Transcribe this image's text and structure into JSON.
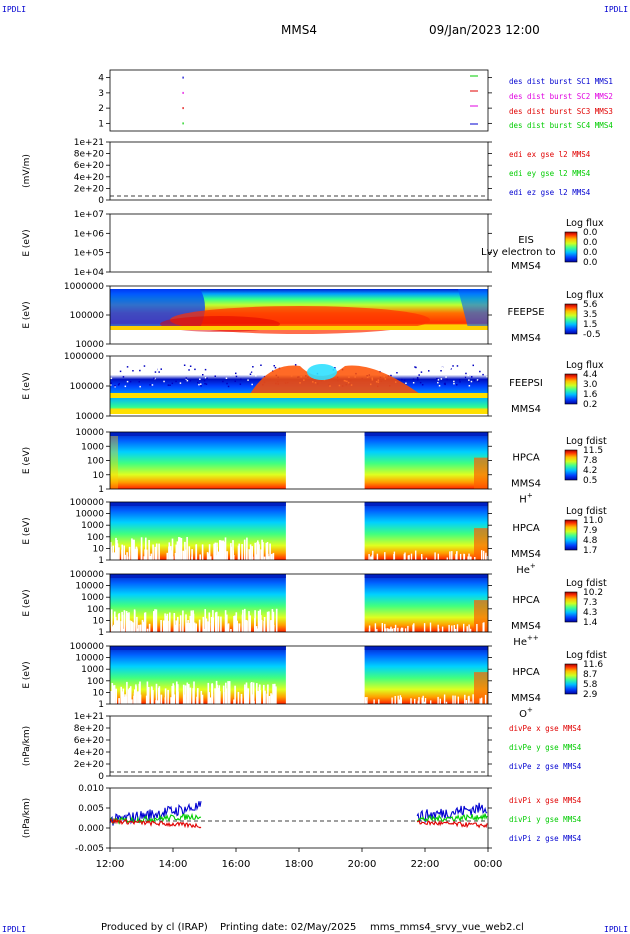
{
  "corner_tag": "IPDLI",
  "header": {
    "spacecraft": "MMS4",
    "date_time": "09/Jan/2023 12:00"
  },
  "footer": {
    "produced_by": "Produced by cl (IRAP)",
    "printing_date": "Printing date: 02/May/2025",
    "script_name": "mms_mms4_srvy_vue_web2.cl"
  },
  "colors": {
    "red": "#e00000",
    "green": "#00cc00",
    "magenta": "#e000e0",
    "blue": "#0000d0",
    "dark_blue": "#0000a0"
  },
  "chart_data": [
    {
      "id": "burst",
      "type": "scatter",
      "y_ticks": [
        "4",
        "3",
        "2",
        "1"
      ],
      "x_range": [
        "12:00",
        "00:00"
      ],
      "ylim": [
        0.5,
        4.5
      ],
      "series": [
        {
          "name": "des dist burst SC1 MMS1",
          "color": "#0000d0",
          "points": [
            [
              14.3,
              4
            ]
          ]
        },
        {
          "name": "des dist burst SC2 MMS2",
          "color": "#e000e0",
          "points": [
            [
              14.3,
              3
            ]
          ]
        },
        {
          "name": "des dist burst SC3 MMS3",
          "color": "#e00000",
          "points": [
            [
              14.3,
              2
            ]
          ]
        },
        {
          "name": "des dist burst SC4 MMS4",
          "color": "#00cc00",
          "points": [
            [
              14.3,
              1
            ]
          ]
        }
      ]
    },
    {
      "id": "edi",
      "type": "line",
      "ylabel": "(mV/m)",
      "y_ticks": [
        "1e+21",
        "8e+20",
        "6e+20",
        "4e+20",
        "2e+20",
        "0"
      ],
      "series": [
        {
          "name": "edi ex gse l2 MMS4",
          "color": "#e00000"
        },
        {
          "name": "edi ey gse l2 MMS4",
          "color": "#00cc00"
        },
        {
          "name": "edi ez gse l2 MMS4",
          "color": "#0000d0"
        }
      ]
    },
    {
      "id": "eis",
      "type": "heatmap",
      "ylabel": "E (eV)",
      "y_ticks": [
        "1e+07",
        "1e+06",
        "1e+05",
        "1e+04"
      ],
      "labels": [
        "EIS",
        "MMS4"
      ],
      "overlay_text": "Lvy electron to",
      "colorbar": {
        "title": "Log flux",
        "ticks": [
          "0.0",
          "0.0",
          "0.0",
          "0.0"
        ]
      }
    },
    {
      "id": "feepse",
      "type": "heatmap",
      "ylabel": "E (eV)",
      "y_ticks": [
        "1000000",
        "100000",
        "10000"
      ],
      "labels": [
        "FEEPSE",
        "MMS4"
      ],
      "colorbar": {
        "title": "Log flux",
        "ticks": [
          "5.6",
          "3.5",
          "1.5",
          "-0.5"
        ]
      }
    },
    {
      "id": "feepsi",
      "type": "heatmap",
      "ylabel": "E (eV)",
      "y_ticks": [
        "1000000",
        "100000",
        "10000"
      ],
      "labels": [
        "FEEPSI",
        "MMS4"
      ],
      "colorbar": {
        "title": "Log flux",
        "ticks": [
          "4.4",
          "3.0",
          "1.6",
          "0.2"
        ]
      }
    },
    {
      "id": "hpca_h",
      "type": "heatmap",
      "ylabel": "E (eV)",
      "y_ticks": [
        "10000",
        "1000",
        "100",
        "10",
        "1"
      ],
      "labels": [
        "HPCA",
        "MMS4"
      ],
      "species": "H",
      "species_charge": "+",
      "gap": [
        "17:35",
        "20:05"
      ],
      "colorbar": {
        "title": "Log fdist",
        "ticks": [
          "11.5",
          "7.8",
          "4.2",
          "0.5"
        ]
      }
    },
    {
      "id": "hpca_he",
      "type": "heatmap",
      "ylabel": "E (eV)",
      "y_ticks": [
        "100000",
        "10000",
        "1000",
        "100",
        "10",
        "1"
      ],
      "labels": [
        "HPCA",
        "MMS4"
      ],
      "species": "He",
      "species_charge": "+",
      "gap": [
        "17:35",
        "20:05"
      ],
      "colorbar": {
        "title": "Log fdist",
        "ticks": [
          "11.0",
          "7.9",
          "4.8",
          "1.7"
        ]
      }
    },
    {
      "id": "hpca_hepp",
      "type": "heatmap",
      "ylabel": "E (eV)",
      "y_ticks": [
        "100000",
        "10000",
        "1000",
        "100",
        "10",
        "1"
      ],
      "labels": [
        "HPCA",
        "MMS4"
      ],
      "species": "He",
      "species_charge": "++",
      "gap": [
        "17:35",
        "20:05"
      ],
      "colorbar": {
        "title": "Log fdist",
        "ticks": [
          "10.2",
          "7.3",
          "4.3",
          "1.4"
        ]
      }
    },
    {
      "id": "hpca_o",
      "type": "heatmap",
      "ylabel": "E (eV)",
      "y_ticks": [
        "100000",
        "10000",
        "1000",
        "100",
        "10",
        "1"
      ],
      "labels": [
        "HPCA",
        "MMS4"
      ],
      "species": "O",
      "species_charge": "+",
      "gap": [
        "17:35",
        "20:05"
      ],
      "colorbar": {
        "title": "Log fdist",
        "ticks": [
          "11.6",
          "8.7",
          "5.8",
          "2.9"
        ]
      }
    },
    {
      "id": "divpe",
      "type": "line",
      "ylabel": "(nPa/km)",
      "y_ticks": [
        "1e+21",
        "8e+20",
        "6e+20",
        "4e+20",
        "2e+20",
        "0"
      ],
      "series": [
        {
          "name": "divPe x gse MMS4",
          "color": "#e00000"
        },
        {
          "name": "divPe y gse MMS4",
          "color": "#00cc00"
        },
        {
          "name": "divPe z gse MMS4",
          "color": "#0000d0"
        }
      ]
    },
    {
      "id": "divpi",
      "type": "line",
      "ylabel": "(nPa/km)",
      "y_ticks": [
        "0.010",
        "0.005",
        "0.000",
        "-0.005"
      ],
      "ylim": [
        -0.009,
        0.011
      ],
      "series": [
        {
          "name": "divPi x gse MMS4",
          "color": "#e00000"
        },
        {
          "name": "divPi y gse MMS4",
          "color": "#00cc00"
        },
        {
          "name": "divPi z gse MMS4",
          "color": "#0000d0"
        }
      ],
      "segments": [
        [
          "12:00",
          "14:55"
        ],
        [
          "21:45",
          "00:00"
        ]
      ]
    }
  ],
  "x_axis": {
    "ticks": [
      "12:00",
      "14:00",
      "16:00",
      "18:00",
      "20:00",
      "22:00",
      "00:00"
    ]
  }
}
